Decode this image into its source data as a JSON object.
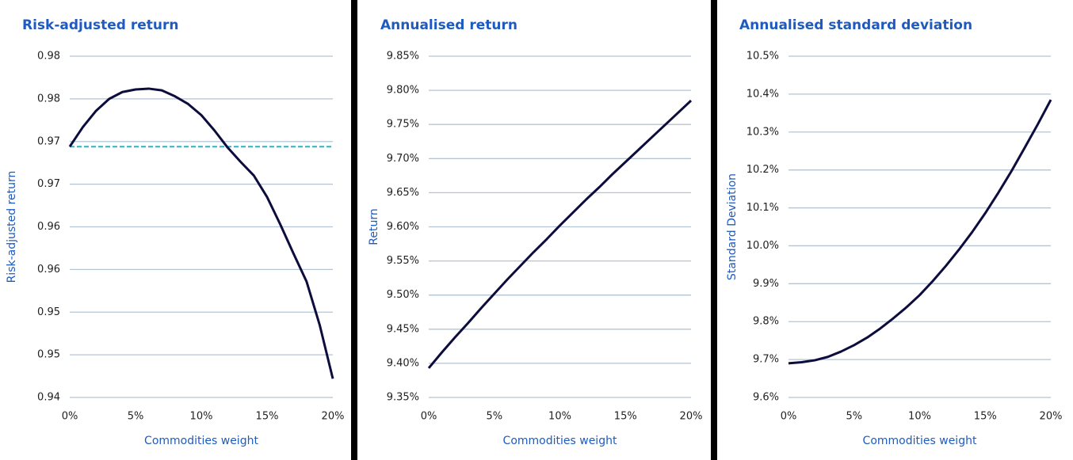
{
  "chart_data": [
    {
      "type": "line",
      "title": "Risk-adjusted return",
      "xlabel": "Commodities weight",
      "ylabel": "Risk-adjusted return",
      "x": [
        0,
        1,
        2,
        3,
        4,
        5,
        6,
        7,
        8,
        9,
        10,
        11,
        12,
        13,
        14,
        15,
        16,
        17,
        18,
        19,
        20
      ],
      "series": [
        {
          "color": "#0d0d3d",
          "values": [
            0.9694,
            0.9717,
            0.9736,
            0.975,
            0.9758,
            0.9761,
            0.9762,
            0.976,
            0.9753,
            0.9744,
            0.9731,
            0.9713,
            0.9693,
            0.9676,
            0.966,
            0.9635,
            0.9603,
            0.9569,
            0.9536,
            0.9485,
            0.9422
          ]
        }
      ],
      "reference_line": {
        "value": 0.9694,
        "color": "#29b5c8"
      },
      "xlim": [
        0,
        20
      ],
      "xticks": [
        {
          "value": 0,
          "label": "0%"
        },
        {
          "value": 5,
          "label": "5%"
        },
        {
          "value": 10,
          "label": "10%"
        },
        {
          "value": 15,
          "label": "15%"
        },
        {
          "value": 20,
          "label": "20%"
        }
      ],
      "ylim": [
        0.94,
        0.98
      ],
      "yticks": [
        0.94,
        {
          "value": 0.945,
          "label": "0.95"
        },
        0.95,
        {
          "value": 0.955,
          "label": "0.96"
        },
        0.96,
        {
          "value": 0.965,
          "label": "0.97"
        },
        0.97,
        {
          "value": 0.975,
          "label": "0.98"
        },
        0.98
      ],
      "grid": true
    },
    {
      "type": "line",
      "title": "Annualised return",
      "xlabel": "Commodities weight",
      "ylabel": "Return",
      "x": [
        0,
        1,
        2,
        3,
        4,
        5,
        6,
        7,
        8,
        9,
        10,
        11,
        12,
        13,
        14,
        15,
        16,
        17,
        18,
        19,
        20
      ],
      "series": [
        {
          "color": "#0d0d3d",
          "values": [
            9.393,
            9.416,
            9.438,
            9.459,
            9.481,
            9.502,
            9.523,
            9.543,
            9.563,
            9.582,
            9.602,
            9.621,
            9.64,
            9.658,
            9.677,
            9.695,
            9.713,
            9.731,
            9.749,
            9.767,
            9.785
          ]
        }
      ],
      "xlim": [
        0,
        20
      ],
      "xticks": [
        {
          "value": 0,
          "label": "0%"
        },
        {
          "value": 5,
          "label": "5%"
        },
        {
          "value": 10,
          "label": "10%"
        },
        {
          "value": 15,
          "label": "15%"
        },
        {
          "value": 20,
          "label": "20%"
        }
      ],
      "ylim": [
        9.35,
        9.85
      ],
      "yticks": [
        {
          "value": 9.35,
          "label": "9.35%"
        },
        {
          "value": 9.4,
          "label": "9.40%"
        },
        {
          "value": 9.45,
          "label": "9.45%"
        },
        {
          "value": 9.5,
          "label": "9.50%"
        },
        {
          "value": 9.55,
          "label": "9.55%"
        },
        {
          "value": 9.6,
          "label": "9.60%"
        },
        {
          "value": 9.65,
          "label": "9.65%"
        },
        {
          "value": 9.7,
          "label": "9.70%"
        },
        {
          "value": 9.75,
          "label": "9.75%"
        },
        {
          "value": 9.8,
          "label": "9.80%"
        },
        {
          "value": 9.85,
          "label": "9.85%"
        }
      ],
      "grid": true
    },
    {
      "type": "line",
      "title": "Annualised standard deviation",
      "xlabel": "Commodities weight",
      "ylabel": "Standard Deviation",
      "x": [
        0,
        1,
        2,
        3,
        4,
        5,
        6,
        7,
        8,
        9,
        10,
        11,
        12,
        13,
        14,
        15,
        16,
        17,
        18,
        19,
        20
      ],
      "series": [
        {
          "color": "#0d0d3d",
          "values": [
            9.69,
            9.693,
            9.698,
            9.707,
            9.721,
            9.738,
            9.758,
            9.782,
            9.809,
            9.838,
            9.87,
            9.907,
            9.947,
            9.99,
            10.036,
            10.086,
            10.14,
            10.197,
            10.258,
            10.32,
            10.385
          ]
        }
      ],
      "xlim": [
        0,
        20
      ],
      "xticks": [
        {
          "value": 0,
          "label": "0%"
        },
        {
          "value": 5,
          "label": "5%"
        },
        {
          "value": 10,
          "label": "10%"
        },
        {
          "value": 15,
          "label": "15%"
        },
        {
          "value": 20,
          "label": "20%"
        }
      ],
      "ylim": [
        9.6,
        10.5
      ],
      "yticks": [
        {
          "value": 9.6,
          "label": "9.6%"
        },
        {
          "value": 9.7,
          "label": "9.7%"
        },
        {
          "value": 9.8,
          "label": "9.8%"
        },
        {
          "value": 9.9,
          "label": "9.9%"
        },
        {
          "value": 10.0,
          "label": "10.0%"
        },
        {
          "value": 10.1,
          "label": "10.1%"
        },
        {
          "value": 10.2,
          "label": "10.2%"
        },
        {
          "value": 10.3,
          "label": "10.3%"
        },
        {
          "value": 10.4,
          "label": "10.4%"
        },
        {
          "value": 10.5,
          "label": "10.5%"
        }
      ],
      "grid": true
    }
  ]
}
